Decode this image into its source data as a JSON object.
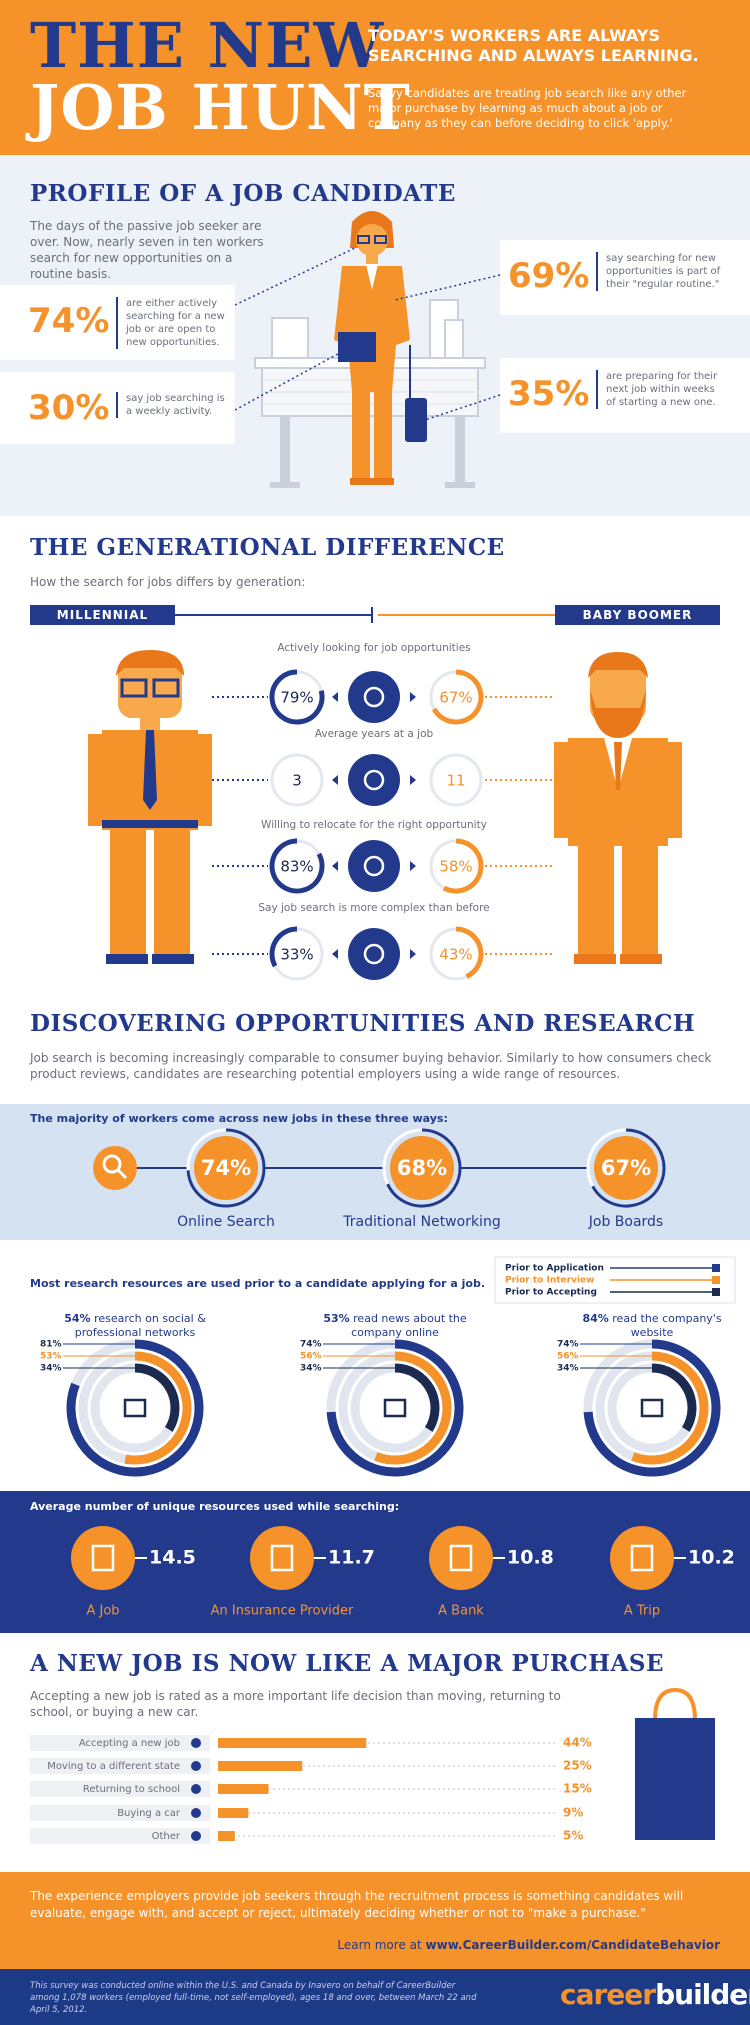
{
  "header": {
    "title_line1": "THE NEW",
    "title_line2": "JOB HUNT",
    "headline": "TODAY'S WORKERS ARE ALWAYS SEARCHING AND ALWAYS LEARNING.",
    "text": "Savvy candidates are treating job search like any other major purchase by learning as much about a job or company as they can before deciding to click 'apply.'"
  },
  "profile": {
    "title": "PROFILE OF A JOB CANDIDATE",
    "intro": "The days of the passive job seeker are over. Now, nearly seven in ten workers search for new opportunities on a routine basis.",
    "stats": [
      {
        "value": "74%",
        "text": "are either actively searching for a new job or are open to new opportunities."
      },
      {
        "value": "30%",
        "text": "say job searching is a weekly activity."
      },
      {
        "value": "69%",
        "text": "say searching for new opportunities is part of their \"regular routine.\""
      },
      {
        "value": "35%",
        "text": "are preparing for their next job within weeks of starting a new one."
      }
    ]
  },
  "generations": {
    "title": "THE GENERATIONAL DIFFERENCE",
    "subtitle": "How the search for jobs differs by generation:",
    "left": "MILLENNIAL",
    "right": "BABY BOOMER",
    "rows": [
      {
        "label": "Actively looking for job opportunities",
        "millennial": {
          "value": 79,
          "label": "79%"
        },
        "boomer": {
          "value": 67,
          "label": "67%"
        }
      },
      {
        "label": "Average years at a job",
        "millennial": 3,
        "boomer": 11
      },
      {
        "label": "Willing to relocate for the right opportunity",
        "millennial": {
          "value": 83,
          "label": "83%"
        },
        "boomer": {
          "value": 58,
          "label": "58%"
        }
      },
      {
        "label": "Say job search is more complex than before",
        "millennial": {
          "value": 33,
          "label": "33%"
        },
        "boomer": {
          "value": 43,
          "label": "43%"
        }
      }
    ]
  },
  "discovering": {
    "title": "DISCOVERING OPPORTUNITIES AND RESEARCH",
    "text": "Job search is becoming increasingly comparable to consumer buying behavior. Similarly to how consumers check product reviews, candidates are researching potential employers using a wide range of resources.",
    "ways_title": "The majority of workers come across new jobs in these three ways:",
    "ways": [
      {
        "value": 74,
        "label": "74%",
        "name": "Online Search"
      },
      {
        "value": 68,
        "label": "68%",
        "name": "Traditional Networking"
      },
      {
        "value": 67,
        "label": "67%",
        "name": "Job Boards"
      }
    ]
  },
  "research": {
    "title": "Most research resources are used prior to a candidate applying for a job.",
    "legend": [
      "Prior to Application",
      "Prior to Interview",
      "Prior to Accepting"
    ],
    "items": [
      {
        "pct": "54%",
        "text": "research on social & professional networks",
        "rings": [
          {
            "value": 81,
            "label": "81%"
          },
          {
            "value": 53,
            "label": "53%"
          },
          {
            "value": 34,
            "label": "34%"
          }
        ]
      },
      {
        "pct": "53%",
        "text": "read news about the company online",
        "rings": [
          {
            "value": 74,
            "label": "74%"
          },
          {
            "value": 56,
            "label": "56%"
          },
          {
            "value": 34,
            "label": "34%"
          }
        ]
      },
      {
        "pct": "84%",
        "text": "read the company's website",
        "rings": [
          {
            "value": 74,
            "label": "74%"
          },
          {
            "value": 56,
            "label": "56%"
          },
          {
            "value": 34,
            "label": "34%"
          }
        ]
      }
    ]
  },
  "resources": {
    "title": "Average number of unique resources used while searching:",
    "items": [
      {
        "value": 14.5,
        "name": "A Job"
      },
      {
        "value": 11.7,
        "name": "An Insurance Provider"
      },
      {
        "value": 10.8,
        "name": "A Bank"
      },
      {
        "value": 10.2,
        "name": "A Trip"
      }
    ]
  },
  "purchase": {
    "title": "A NEW JOB IS NOW LIKE A MAJOR PURCHASE",
    "text": "Accepting a new job is rated as a more important life decision than moving, returning to school, or buying a new car.",
    "items": [
      {
        "name": "Accepting a new job",
        "value": 44,
        "label": "44%"
      },
      {
        "name": "Moving to a different state",
        "value": 25,
        "label": "25%"
      },
      {
        "name": "Returning to school",
        "value": 15,
        "label": "15%"
      },
      {
        "name": "Buying a car",
        "value": 9,
        "label": "9%"
      },
      {
        "name": "Other",
        "value": 5,
        "label": "5%"
      }
    ]
  },
  "footer": {
    "text": "The experience employers provide job seekers through the recruitment process is something candidates will evaluate, engage with, and accept or reject, ultimately deciding whether or not to \"make a purchase.\"",
    "learn": "Learn more at",
    "url": "www.CareerBuilder.com/CandidateBehavior",
    "note": "This survey was conducted online within the U.S. and Canada by Inavero on behalf of CareerBuilder among 1,078 workers (employed full-time, not self-employed), ages 18 and over, between March 22 and April 5, 2012.",
    "logo_a": "career",
    "logo_b": "builder"
  }
}
